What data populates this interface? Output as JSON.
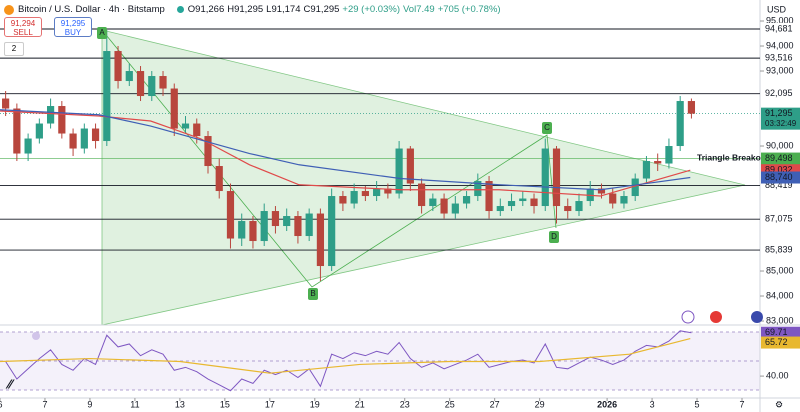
{
  "chart_data": {
    "type": "candlestick",
    "title": "Bitcoin / U.S. Dollar · 4h · Bitstamp",
    "ohlc_text": [
      "O91,266",
      "H91,295",
      "L91,174",
      "C91,295",
      "+29 (+0.03%)",
      "Vol7.49",
      "+705 (+0.78%)"
    ],
    "currency": "USD",
    "sell": {
      "price": "91,294",
      "label": "SELL"
    },
    "buy": {
      "price": "91,295",
      "label": "BUY"
    },
    "interval_button": "2",
    "up_color": "#2e9e88",
    "down_color": "#b8463d",
    "x": [
      -2,
      -1.5,
      -1,
      -0.5,
      0,
      0.5,
      1,
      1.5,
      2,
      2.5,
      3,
      3.5,
      4,
      4.5,
      5,
      5.5,
      6,
      6.5,
      7,
      7.5,
      8,
      8.5,
      9,
      9.5,
      10,
      10.5,
      11,
      11.5,
      12,
      12.5,
      13,
      13.5,
      14,
      14.5,
      15,
      15.5,
      16,
      16.5,
      17,
      17.5,
      18,
      18.5,
      19,
      19.5,
      20,
      20.5,
      21,
      21.5,
      22,
      22.5,
      23,
      23.5,
      24,
      24.5,
      25,
      25.5,
      26,
      26.5,
      27,
      27.5,
      28,
      28.5
    ],
    "open": [
      91900,
      91500,
      89700,
      90300,
      90900,
      91600,
      90500,
      89900,
      90700,
      90200,
      93800,
      92600,
      93000,
      92000,
      92800,
      92300,
      90700,
      90900,
      90400,
      89200,
      88200,
      86300,
      87000,
      86200,
      87400,
      86800,
      87200,
      86400,
      87300,
      85200,
      88000,
      87700,
      88200,
      88000,
      88300,
      88100,
      89900,
      88500,
      87600,
      87900,
      87300,
      87700,
      88000,
      88600,
      87400,
      87600,
      87800,
      87900,
      87600,
      89900,
      87600,
      87400,
      87800,
      88300,
      88100,
      87700,
      88000,
      88700,
      89400,
      89300,
      90000,
      91800
    ],
    "high": [
      92200,
      91700,
      90500,
      91100,
      91900,
      91800,
      90700,
      90900,
      90900,
      94640,
      94000,
      93300,
      93200,
      93000,
      93000,
      92500,
      91200,
      91100,
      90600,
      89500,
      88500,
      87300,
      87200,
      87700,
      87600,
      87500,
      87400,
      87500,
      87500,
      88300,
      88200,
      88500,
      88400,
      88600,
      88500,
      90200,
      90000,
      88700,
      88100,
      88100,
      88000,
      88200,
      88900,
      88800,
      87900,
      88100,
      88200,
      88100,
      90300,
      90000,
      87900,
      88100,
      88600,
      88500,
      88300,
      88200,
      88900,
      89600,
      89700,
      90300,
      92000,
      91900
    ],
    "low": [
      91200,
      89400,
      89400,
      90100,
      90700,
      90300,
      89600,
      89700,
      89900,
      90000,
      92300,
      92400,
      91800,
      91800,
      92000,
      90400,
      90500,
      90100,
      88900,
      87900,
      85900,
      86000,
      85900,
      86000,
      86500,
      86600,
      86100,
      86200,
      84600,
      85000,
      87400,
      87500,
      87800,
      87800,
      87900,
      87900,
      88200,
      87300,
      87400,
      87100,
      87100,
      87500,
      87800,
      87100,
      87200,
      87400,
      87600,
      87300,
      87400,
      86900,
      87100,
      87200,
      87600,
      87900,
      87500,
      87500,
      87800,
      88500,
      89000,
      89100,
      89800,
      91100
    ],
    "close": [
      91500,
      89700,
      90300,
      90900,
      91600,
      90500,
      89900,
      90700,
      90200,
      93800,
      92600,
      93000,
      92000,
      92800,
      92300,
      90700,
      90900,
      90400,
      89200,
      88200,
      86300,
      87000,
      86200,
      87400,
      86800,
      87200,
      86400,
      87300,
      85200,
      88000,
      87700,
      88200,
      88000,
      88300,
      88100,
      89900,
      88500,
      87600,
      87900,
      87300,
      87700,
      88000,
      88600,
      87400,
      87600,
      87800,
      87900,
      87600,
      89900,
      87600,
      87400,
      87800,
      88300,
      88100,
      87700,
      88000,
      88700,
      89400,
      89300,
      90000,
      91800,
      91295
    ],
    "xlim": [
      -2,
      31.8
    ],
    "ylim": [
      82841,
      95841
    ],
    "yticks": [
      {
        "value": 95000,
        "label": "95,000"
      },
      {
        "value": 94000,
        "label": "94,000"
      },
      {
        "value": 93000,
        "label": "93,000"
      },
      {
        "value": 90000,
        "label": "90,000"
      },
      {
        "value": 85000,
        "label": "85,000"
      },
      {
        "value": 84000,
        "label": "84,000"
      },
      {
        "value": 83000,
        "label": "83,000"
      }
    ],
    "xticks": [
      {
        "value": -2,
        "label": "6"
      },
      {
        "value": 0,
        "label": "7"
      },
      {
        "value": 2,
        "label": "9"
      },
      {
        "value": 4,
        "label": "11"
      },
      {
        "value": 6,
        "label": "13"
      },
      {
        "value": 8,
        "label": "15"
      },
      {
        "value": 10,
        "label": "17"
      },
      {
        "value": 12,
        "label": "19"
      },
      {
        "value": 14,
        "label": "21"
      },
      {
        "value": 16,
        "label": "23"
      },
      {
        "value": 18,
        "label": "25"
      },
      {
        "value": 20,
        "label": "27"
      },
      {
        "value": 22,
        "label": "29"
      },
      {
        "value": 25,
        "label": "2026"
      },
      {
        "value": 27,
        "label": "3"
      },
      {
        "value": 29,
        "label": "5"
      },
      {
        "value": 31,
        "label": "7"
      }
    ],
    "levels": [
      {
        "value": 94681,
        "label": "94,681",
        "color": "#131722"
      },
      {
        "value": 93516,
        "label": "93,516",
        "color": "#131722"
      },
      {
        "value": 92095,
        "label": "92,095",
        "color": "#131722"
      },
      {
        "value": 89498,
        "label": "89,498",
        "color": "#4caf50"
      },
      {
        "value": 88419,
        "label": "88,419",
        "color": "#131722"
      },
      {
        "value": 87075,
        "label": "87,075",
        "color": "#131722"
      },
      {
        "value": 85839,
        "label": "85,839",
        "color": "#131722"
      }
    ],
    "moving_averages": [
      {
        "color": "#e04a4a",
        "label": "89,032",
        "x": [
          -2,
          2.4,
          4.7,
          6.9,
          9.1,
          11.3,
          15.8,
          20.2,
          24.7,
          28.7
        ],
        "values": [
          91400,
          91200,
          91000,
          90300,
          89250,
          88450,
          88250,
          88250,
          88000,
          89032
        ]
      },
      {
        "color": "#3f5fb5",
        "label": "88,740",
        "x": [
          -2,
          2.4,
          4.7,
          6.9,
          9.1,
          11.3,
          15.8,
          20.2,
          24.7,
          28.7
        ],
        "values": [
          91450,
          91250,
          90800,
          90250,
          89700,
          89250,
          88700,
          88450,
          88250,
          88740
        ]
      }
    ],
    "price": {
      "value": 91295,
      "label": "91,295",
      "countdown": "03:32:49",
      "color": "#2e9e88"
    },
    "annotations": [
      "A",
      "B",
      "C",
      "D",
      "Triangle Breakout"
    ],
    "rsi": {
      "color": "#7e57c2",
      "ylim": [
        25,
        75
      ],
      "yticks": [
        {
          "value": 40,
          "label": "40.00"
        }
      ],
      "values": [
        50,
        38,
        45,
        52,
        58,
        48,
        44,
        52,
        48,
        68,
        60,
        62,
        54,
        58,
        55,
        44,
        46,
        43,
        38,
        34,
        30,
        38,
        35,
        44,
        41,
        44,
        39,
        45,
        33,
        55,
        52,
        56,
        54,
        57,
        55,
        63,
        52,
        46,
        49,
        45,
        48,
        51,
        55,
        46,
        48,
        50,
        51,
        49,
        62,
        46,
        45,
        49,
        53,
        51,
        48,
        51,
        57,
        61,
        60,
        64,
        71,
        69.71
      ],
      "label": {
        "value": 69.71,
        "label": "69.71"
      },
      "ma": {
        "color": "#e8b830",
        "x": [
          -2,
          2,
          6,
          10,
          14,
          18,
          22,
          26,
          28.7
        ],
        "values": [
          50,
          52,
          50,
          42,
          48,
          50,
          50,
          55,
          65.72
        ],
        "label": {
          "value": 65.72,
          "label": "65.72"
        }
      }
    }
  }
}
